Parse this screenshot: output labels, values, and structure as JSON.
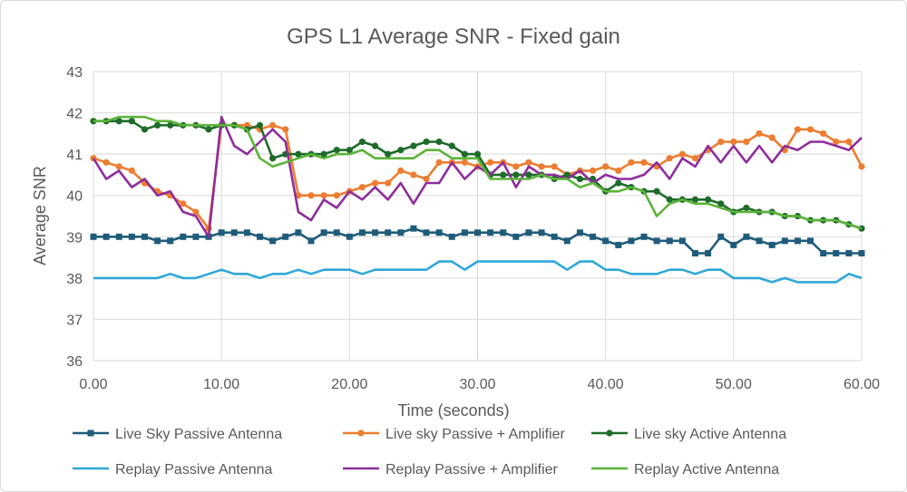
{
  "chart_data": {
    "type": "line",
    "title": "GPS L1 Average SNR - Fixed gain",
    "xlabel": "Time (seconds)",
    "ylabel": "Average SNR",
    "xlim": [
      0,
      60
    ],
    "ylim": [
      36,
      43
    ],
    "xticks": [
      "0.00",
      "10.00",
      "20.00",
      "30.00",
      "40.00",
      "50.00",
      "60.00"
    ],
    "yticks": [
      "36",
      "37",
      "38",
      "39",
      "40",
      "41",
      "42",
      "43"
    ],
    "grid": true,
    "legend": "bottom",
    "series": [
      {
        "name": "Live Sky Passive Antenna",
        "color": "#1f5c7a",
        "marker": "square",
        "x": [
          0,
          1,
          2,
          3,
          4,
          5,
          6,
          7,
          8,
          9,
          10,
          11,
          12,
          13,
          14,
          15,
          16,
          17,
          18,
          19,
          20,
          21,
          22,
          23,
          24,
          25,
          26,
          27,
          28,
          29,
          30,
          31,
          32,
          33,
          34,
          35,
          36,
          37,
          38,
          39,
          40,
          41,
          42,
          43,
          44,
          45,
          46,
          47,
          48,
          49,
          50,
          51,
          52,
          53,
          54,
          55,
          56,
          57,
          58,
          59,
          60
        ],
        "values": [
          39.0,
          39.0,
          39.0,
          39.0,
          39.0,
          38.9,
          38.9,
          39.0,
          39.0,
          39.0,
          39.1,
          39.1,
          39.1,
          39.0,
          38.9,
          39.0,
          39.1,
          38.9,
          39.1,
          39.1,
          39.0,
          39.1,
          39.1,
          39.1,
          39.1,
          39.2,
          39.1,
          39.1,
          39.0,
          39.1,
          39.1,
          39.1,
          39.1,
          39.0,
          39.1,
          39.1,
          39.0,
          38.9,
          39.1,
          39.0,
          38.9,
          38.8,
          38.9,
          39.0,
          38.9,
          38.9,
          38.9,
          38.6,
          38.6,
          39.0,
          38.8,
          39.0,
          38.9,
          38.8,
          38.9,
          38.9,
          38.9,
          38.6,
          38.6,
          38.6,
          38.6
        ]
      },
      {
        "name": "Live sky Passive + Amplifier",
        "color": "#ed7d31",
        "marker": "circle",
        "x": [
          0,
          1,
          2,
          3,
          4,
          5,
          6,
          7,
          8,
          9,
          10,
          11,
          12,
          13,
          14,
          15,
          16,
          17,
          18,
          19,
          20,
          21,
          22,
          23,
          24,
          25,
          26,
          27,
          28,
          29,
          30,
          31,
          32,
          33,
          34,
          35,
          36,
          37,
          38,
          39,
          40,
          41,
          42,
          43,
          44,
          45,
          46,
          47,
          48,
          49,
          50,
          51,
          52,
          53,
          54,
          55,
          56,
          57,
          58,
          59,
          60
        ],
        "values": [
          40.9,
          40.8,
          40.7,
          40.6,
          40.3,
          40.1,
          40.0,
          39.8,
          39.6,
          39.2,
          41.7,
          41.7,
          41.7,
          41.6,
          41.7,
          41.6,
          40.0,
          40.0,
          40.0,
          40.0,
          40.1,
          40.2,
          40.3,
          40.3,
          40.6,
          40.5,
          40.4,
          40.8,
          40.8,
          40.8,
          40.7,
          40.8,
          40.8,
          40.7,
          40.8,
          40.7,
          40.7,
          40.5,
          40.6,
          40.6,
          40.7,
          40.6,
          40.8,
          40.8,
          40.7,
          40.9,
          41.0,
          40.9,
          41.1,
          41.3,
          41.3,
          41.3,
          41.5,
          41.4,
          41.1,
          41.6,
          41.6,
          41.5,
          41.3,
          41.3,
          40.7
        ]
      },
      {
        "name": "Live sky Active Antenna",
        "color": "#1e6b2a",
        "marker": "circle",
        "x": [
          0,
          1,
          2,
          3,
          4,
          5,
          6,
          7,
          8,
          9,
          10,
          11,
          12,
          13,
          14,
          15,
          16,
          17,
          18,
          19,
          20,
          21,
          22,
          23,
          24,
          25,
          26,
          27,
          28,
          29,
          30,
          31,
          32,
          33,
          34,
          35,
          36,
          37,
          38,
          39,
          40,
          41,
          42,
          43,
          44,
          45,
          46,
          47,
          48,
          49,
          50,
          51,
          52,
          53,
          54,
          55,
          56,
          57,
          58,
          59,
          60
        ],
        "values": [
          41.8,
          41.8,
          41.8,
          41.8,
          41.6,
          41.7,
          41.7,
          41.7,
          41.7,
          41.6,
          41.7,
          41.7,
          41.6,
          41.7,
          40.9,
          41.0,
          41.0,
          41.0,
          41.0,
          41.1,
          41.1,
          41.3,
          41.2,
          41.0,
          41.1,
          41.2,
          41.3,
          41.3,
          41.2,
          41.0,
          41.0,
          40.5,
          40.5,
          40.5,
          40.5,
          40.5,
          40.4,
          40.5,
          40.4,
          40.4,
          40.1,
          40.3,
          40.2,
          40.1,
          40.1,
          39.9,
          39.9,
          39.9,
          39.9,
          39.8,
          39.6,
          39.7,
          39.6,
          39.6,
          39.5,
          39.5,
          39.4,
          39.4,
          39.4,
          39.3,
          39.2
        ]
      },
      {
        "name": "Replay Passive Antenna",
        "color": "#2fa8d8",
        "marker": "none",
        "x": [
          0,
          1,
          2,
          3,
          4,
          5,
          6,
          7,
          8,
          9,
          10,
          11,
          12,
          13,
          14,
          15,
          16,
          17,
          18,
          19,
          20,
          21,
          22,
          23,
          24,
          25,
          26,
          27,
          28,
          29,
          30,
          31,
          32,
          33,
          34,
          35,
          36,
          37,
          38,
          39,
          40,
          41,
          42,
          43,
          44,
          45,
          46,
          47,
          48,
          49,
          50,
          51,
          52,
          53,
          54,
          55,
          56,
          57,
          58,
          59,
          60
        ],
        "values": [
          38.0,
          38.0,
          38.0,
          38.0,
          38.0,
          38.0,
          38.1,
          38.0,
          38.0,
          38.1,
          38.2,
          38.1,
          38.1,
          38.0,
          38.1,
          38.1,
          38.2,
          38.1,
          38.2,
          38.2,
          38.2,
          38.1,
          38.2,
          38.2,
          38.2,
          38.2,
          38.2,
          38.4,
          38.4,
          38.2,
          38.4,
          38.4,
          38.4,
          38.4,
          38.4,
          38.4,
          38.4,
          38.2,
          38.4,
          38.4,
          38.2,
          38.2,
          38.1,
          38.1,
          38.1,
          38.2,
          38.2,
          38.1,
          38.2,
          38.2,
          38.0,
          38.0,
          38.0,
          37.9,
          38.0,
          37.9,
          37.9,
          37.9,
          37.9,
          38.1,
          38.0
        ]
      },
      {
        "name": "Replay Passive + Amplifier",
        "color": "#8e2d9c",
        "marker": "none",
        "x": [
          0,
          1,
          2,
          3,
          4,
          5,
          6,
          7,
          8,
          9,
          10,
          11,
          12,
          13,
          14,
          15,
          16,
          17,
          18,
          19,
          20,
          21,
          22,
          23,
          24,
          25,
          26,
          27,
          28,
          29,
          30,
          31,
          32,
          33,
          34,
          35,
          36,
          37,
          38,
          39,
          40,
          41,
          42,
          43,
          44,
          45,
          46,
          47,
          48,
          49,
          50,
          51,
          52,
          53,
          54,
          55,
          56,
          57,
          58,
          59,
          60
        ],
        "values": [
          40.9,
          40.4,
          40.6,
          40.2,
          40.4,
          40.0,
          40.1,
          39.6,
          39.5,
          39.0,
          41.9,
          41.2,
          41.0,
          41.3,
          41.6,
          41.3,
          39.6,
          39.4,
          39.9,
          39.7,
          40.1,
          39.9,
          40.2,
          39.9,
          40.3,
          39.8,
          40.3,
          40.3,
          40.8,
          40.4,
          40.7,
          40.5,
          40.8,
          40.2,
          40.7,
          40.5,
          40.5,
          40.4,
          40.6,
          40.3,
          40.5,
          40.4,
          40.4,
          40.5,
          40.8,
          40.4,
          40.9,
          40.7,
          41.2,
          40.8,
          41.2,
          40.8,
          41.2,
          40.8,
          41.2,
          41.1,
          41.3,
          41.3,
          41.2,
          41.1,
          41.4
        ]
      },
      {
        "name": "Replay Active Antenna",
        "color": "#5cb33a",
        "marker": "none",
        "x": [
          0,
          1,
          2,
          3,
          4,
          5,
          6,
          7,
          8,
          9,
          10,
          11,
          12,
          13,
          14,
          15,
          16,
          17,
          18,
          19,
          20,
          21,
          22,
          23,
          24,
          25,
          26,
          27,
          28,
          29,
          30,
          31,
          32,
          33,
          34,
          35,
          36,
          37,
          38,
          39,
          40,
          41,
          42,
          43,
          44,
          45,
          46,
          47,
          48,
          49,
          50,
          51,
          52,
          53,
          54,
          55,
          56,
          57,
          58,
          59,
          60
        ],
        "values": [
          41.8,
          41.8,
          41.9,
          41.9,
          41.9,
          41.8,
          41.8,
          41.7,
          41.7,
          41.7,
          41.7,
          41.7,
          41.6,
          40.9,
          40.7,
          40.8,
          40.9,
          41.0,
          40.9,
          41.0,
          41.0,
          41.1,
          40.9,
          40.9,
          40.9,
          40.9,
          41.1,
          41.1,
          40.9,
          40.9,
          40.9,
          40.4,
          40.4,
          40.4,
          40.4,
          40.5,
          40.4,
          40.4,
          40.2,
          40.3,
          40.1,
          40.1,
          40.2,
          40.1,
          39.5,
          39.8,
          39.9,
          39.8,
          39.8,
          39.7,
          39.6,
          39.6,
          39.6,
          39.6,
          39.5,
          39.5,
          39.4,
          39.4,
          39.4,
          39.3,
          39.2
        ]
      }
    ]
  }
}
